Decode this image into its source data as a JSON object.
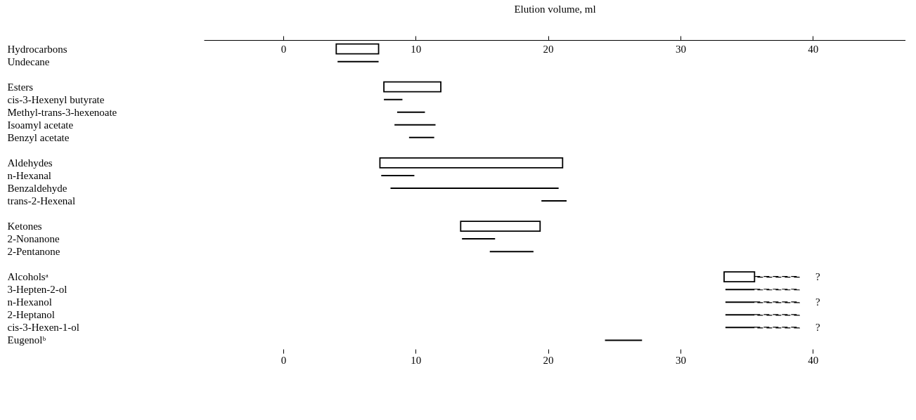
{
  "chart_data": {
    "type": "bar",
    "orientation": "horizontal",
    "categories": [
      "Hydrocarbons",
      "Undecane",
      null,
      "Esters",
      "cis-3-Hexenyl butyrate",
      "Methyl-trans-3-hexenoate",
      "Isoamyl acetate",
      "Benzyl acetate",
      null,
      "Aldehydes",
      "n-Hexanal",
      "Benzaldehyde",
      "trans-2-Hexenal",
      null,
      "Ketones",
      "2-Nonanone",
      "2-Pentanone",
      null,
      "Alcoholsᵃ",
      "3-Hepten-2-ol",
      "n-Hexanol",
      "2-Heptanol",
      "cis-3-Hexen-1-ol",
      "Eugenolᵇ"
    ],
    "series": [
      {
        "color": "#000000",
        "base": [
          4.0,
          null,
          null,
          7.6,
          null,
          null,
          null,
          null,
          null,
          7.3,
          null,
          null,
          null,
          null,
          13.4,
          null,
          null,
          null,
          33.3,
          null,
          null,
          null,
          null,
          null
        ],
        "values": [
          3.2,
          null,
          null,
          4.3,
          null,
          null,
          null,
          null,
          null,
          13.8,
          null,
          null,
          null,
          null,
          6.0,
          null,
          null,
          null,
          2.3,
          null,
          null,
          null,
          null,
          null
        ]
      },
      {
        "color": "#000000",
        "line_style": "solid",
        "base": [
          null,
          4.1,
          null,
          null,
          7.6,
          8.6,
          8.4,
          9.5,
          null,
          null,
          7.4,
          8.1,
          19.5,
          null,
          null,
          13.5,
          15.6,
          null,
          null,
          33.4,
          33.4,
          33.4,
          33.4,
          24.3
        ],
        "values": [
          null,
          3.1,
          null,
          null,
          1.4,
          2.1,
          3.1,
          1.9,
          null,
          null,
          2.5,
          12.7,
          1.9,
          null,
          null,
          2.5,
          3.3,
          null,
          null,
          2.2,
          2.2,
          2.2,
          2.2,
          2.8
        ]
      },
      {
        "color": "#000000",
        "line_style": "dashed",
        "base": [
          null,
          null,
          null,
          null,
          null,
          null,
          null,
          null,
          null,
          null,
          null,
          null,
          null,
          null,
          null,
          null,
          null,
          null,
          35.6,
          35.6,
          35.6,
          35.6,
          35.6,
          null
        ],
        "values": [
          null,
          null,
          null,
          null,
          null,
          null,
          null,
          null,
          null,
          null,
          null,
          null,
          null,
          null,
          null,
          null,
          null,
          null,
          3.4,
          3.4,
          3.4,
          3.4,
          3.4,
          null
        ]
      }
    ],
    "xlim": [
      -6,
      47
    ],
    "xticks": [
      0,
      10,
      20,
      30,
      40
    ],
    "x2lim": [
      -6,
      47
    ],
    "x2ticks": [
      0,
      10,
      20,
      30,
      40
    ],
    "x2label": "Elution volume, ml",
    "annotations": [
      "?",
      "?",
      "?"
    ],
    "grid": false
  }
}
